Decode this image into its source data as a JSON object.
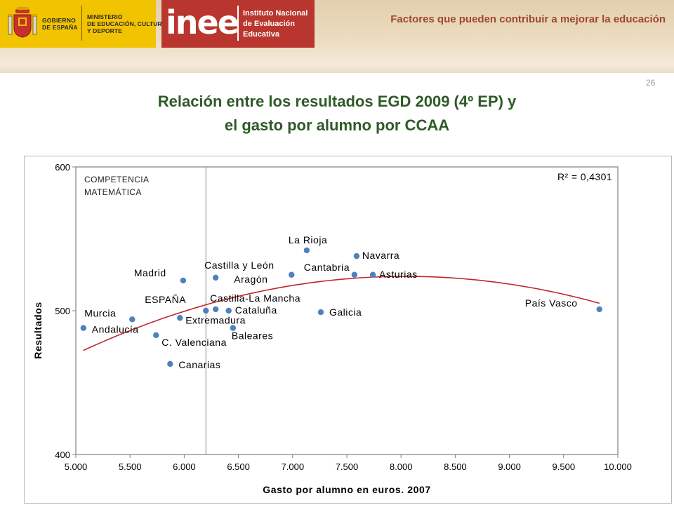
{
  "header": {
    "gobierno_label": "GOBIERNO\nDE ESPAÑA",
    "ministerio_label": "MINISTERIO\nDE EDUCACIÓN, CULTURA\nY DEPORTE",
    "inee_logo": "inee",
    "inee_name": "Instituto Nacional\nde Evaluación\nEducativa",
    "caption": "Factores que pueden contribuir a mejorar la educación",
    "page_number": "26"
  },
  "slide": {
    "title_line1": "Relación entre los resultados EGD 2009 (4º EP) y",
    "title_line2": "el gasto por alumno por CCAA"
  },
  "colors": {
    "title": "#2f5a28",
    "caption": "#a0482e",
    "point": "#4f81bd",
    "trend": "#c0272d",
    "banner_yellow": "#f2c300",
    "banner_red": "#b8362e"
  },
  "chart_data": {
    "type": "scatter",
    "inset_label_line1": "COMPETENCIA",
    "inset_label_line2": "MATEMÁTICA",
    "r2_label": "R² = 0,4301",
    "xlabel": "Gasto por alumno en euros. 2007",
    "ylabel": "Resultados",
    "xlim": [
      5000,
      10000
    ],
    "ylim": [
      400,
      600
    ],
    "x_ticks": [
      "5.000",
      "5.500",
      "6.000",
      "6.500",
      "7.000",
      "7.500",
      "8.000",
      "8.500",
      "9.000",
      "9.500",
      "10.000"
    ],
    "y_ticks": [
      "400",
      "500",
      "600"
    ],
    "reference_x": 6200,
    "grid": false,
    "points": [
      {
        "label": "Murcia",
        "x": 5520,
        "y": 494
      },
      {
        "label": "Andalucía",
        "x": 5070,
        "y": 488
      },
      {
        "label": "C. Valenciana",
        "x": 5740,
        "y": 483
      },
      {
        "label": "Canarias",
        "x": 5870,
        "y": 463
      },
      {
        "label": "Madrid",
        "x": 5990,
        "y": 521
      },
      {
        "label": "ESPAÑA",
        "x": 6200,
        "y": 500
      },
      {
        "label": "Extremadura",
        "x": 5960,
        "y": 495
      },
      {
        "label": "Castilla y León",
        "x": 6290,
        "y": 523
      },
      {
        "label": "Aragón",
        "x": 6990,
        "y": 525
      },
      {
        "label": "Castilla-La Mancha",
        "x": 6290,
        "y": 501
      },
      {
        "label": "Cataluña",
        "x": 6410,
        "y": 500
      },
      {
        "label": "Baleares",
        "x": 6450,
        "y": 488
      },
      {
        "label": "La Rioja",
        "x": 7130,
        "y": 542
      },
      {
        "label": "Navarra",
        "x": 7590,
        "y": 538
      },
      {
        "label": "Cantabria",
        "x": 7570,
        "y": 525
      },
      {
        "label": "Asturias",
        "x": 7740,
        "y": 525
      },
      {
        "label": "Galicia",
        "x": 7260,
        "y": 499
      },
      {
        "label": "País Vasco",
        "x": 9830,
        "y": 501
      }
    ],
    "trendline": {
      "type": "polynomial-2",
      "r2": 0.4301
    }
  }
}
